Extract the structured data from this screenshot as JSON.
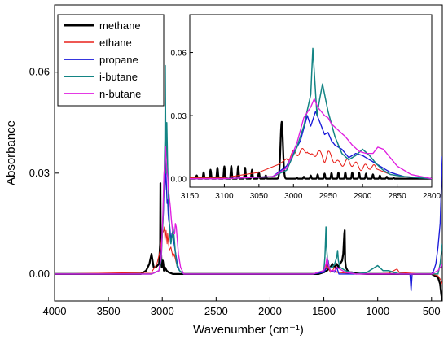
{
  "chart_data": {
    "type": "line",
    "title": "",
    "xlabel": "Wavenumber (cm⁻¹)",
    "ylabel": "Absorbance",
    "xlim": [
      4000,
      400
    ],
    "ylim": [
      -0.008,
      0.08
    ],
    "x_reversed": true,
    "x_ticks": [
      4000,
      3500,
      3000,
      2500,
      2000,
      1500,
      1000,
      500
    ],
    "y_ticks": [
      0.0,
      0.03,
      0.06
    ],
    "x_tick_labels": [
      "4000",
      "3500",
      "3000",
      "2500",
      "2000",
      "1500",
      "1000",
      "500"
    ],
    "y_tick_labels": [
      "0.00",
      "0.03",
      "0.06"
    ],
    "legend_position": "top-left",
    "series": [
      {
        "name": "methane",
        "color": "#000000",
        "stroke_width": 3,
        "x": [
          4000,
          3200,
          3150,
          3120,
          3100,
          3090,
          3080,
          3060,
          3030,
          3020,
          3017,
          3014,
          3005,
          2995,
          2990,
          2985,
          2975,
          2960,
          2940,
          2900,
          2800,
          2000,
          1550,
          1500,
          1470,
          1440,
          1420,
          1400,
          1380,
          1365,
          1350,
          1330,
          1320,
          1310,
          1306,
          1302,
          1295,
          1280,
          1260,
          1240,
          1200,
          1100,
          1000,
          800,
          500,
          440,
          420,
          410,
          400
        ],
        "y": [
          0,
          0,
          0.001,
          0.003,
          0.006,
          0.004,
          0.002,
          0.002,
          0.003,
          0.009,
          0.027,
          0.009,
          0.002,
          0.004,
          0.003,
          0.001,
          0.002,
          0.001,
          0.0005,
          0,
          0,
          0,
          0,
          0.0005,
          0.001,
          0.002,
          0.003,
          0.002,
          0.003,
          0.002,
          0.003,
          0.004,
          0.006,
          0.012,
          0.013,
          0.004,
          0.002,
          0.001,
          0.0005,
          0.0005,
          0.0002,
          0,
          0,
          0,
          0,
          -0.001,
          -0.003,
          -0.006,
          -0.008
        ]
      },
      {
        "name": "ethane",
        "color": "#e8201a",
        "stroke_width": 1.4,
        "x": [
          4000,
          3100,
          3050,
          3020,
          3000,
          2985,
          2980,
          2975,
          2965,
          2955,
          2950,
          2935,
          2920,
          2900,
          2890,
          2875,
          2860,
          2840,
          2800,
          2000,
          1600,
          1500,
          1480,
          1470,
          1460,
          1440,
          1420,
          1400,
          1380,
          1200,
          1000,
          900,
          850,
          820,
          800,
          600,
          500,
          440,
          410,
          400
        ],
        "y": [
          0,
          0.0005,
          0.003,
          0.007,
          0.012,
          0.013,
          0.014,
          0.01,
          0.013,
          0.009,
          0.012,
          0.007,
          0.008,
          0.005,
          0.006,
          0.004,
          0.002,
          0.001,
          0,
          0,
          0,
          0.0005,
          0.002,
          0.004,
          0.002,
          0.0005,
          0.001,
          0.002,
          0.0005,
          0,
          0,
          0.0002,
          0.001,
          0.0015,
          0.0005,
          0,
          0,
          -0.0005,
          -0.002,
          -0.003
        ]
      },
      {
        "name": "propane",
        "color": "#1a1ad9",
        "stroke_width": 1.8,
        "x": [
          4000,
          3100,
          3030,
          3010,
          2990,
          2980,
          2975,
          2968,
          2962,
          2955,
          2950,
          2945,
          2940,
          2930,
          2920,
          2910,
          2900,
          2890,
          2880,
          2870,
          2860,
          2840,
          2800,
          2000,
          1600,
          1500,
          1470,
          1460,
          1450,
          1440,
          1400,
          1380,
          1370,
          1360,
          1200,
          1000,
          900,
          800,
          700,
          690,
          680,
          600,
          500,
          480,
          460,
          440,
          420,
          410,
          400
        ],
        "y": [
          0,
          0,
          0.001,
          0.006,
          0.018,
          0.03,
          0.025,
          0.032,
          0.027,
          0.021,
          0.022,
          0.018,
          0.016,
          0.014,
          0.01,
          0.012,
          0.011,
          0.009,
          0.007,
          0.005,
          0.003,
          0.001,
          0,
          0,
          0,
          0.0005,
          0.002,
          0.004,
          0.002,
          0.001,
          0.0005,
          0.002,
          0.001,
          0,
          0,
          0,
          0,
          0,
          0,
          -0.005,
          0,
          0,
          0,
          0.001,
          0.003,
          0.008,
          0.015,
          0.025,
          0.035
        ]
      },
      {
        "name": "i-butane",
        "color": "#138484",
        "stroke_width": 2.0,
        "x": [
          4000,
          3100,
          3030,
          3010,
          2995,
          2985,
          2975,
          2972,
          2966,
          2962,
          2958,
          2950,
          2940,
          2930,
          2920,
          2910,
          2900,
          2890,
          2880,
          2870,
          2860,
          2840,
          2800,
          2000,
          1600,
          1500,
          1490,
          1480,
          1475,
          1465,
          1450,
          1420,
          1400,
          1380,
          1372,
          1365,
          1350,
          1300,
          1200,
          1100,
          1000,
          950,
          900,
          800,
          600,
          500,
          440,
          420,
          410,
          400
        ],
        "y": [
          0,
          0,
          0.001,
          0.004,
          0.015,
          0.025,
          0.04,
          0.062,
          0.03,
          0.038,
          0.045,
          0.032,
          0.02,
          0.012,
          0.009,
          0.011,
          0.014,
          0.011,
          0.007,
          0.004,
          0.002,
          0.001,
          0,
          0,
          0,
          0.001,
          0.005,
          0.014,
          0.008,
          0.004,
          0.002,
          0.002,
          0.003,
          0.005,
          0.007,
          0.004,
          0.002,
          0.001,
          0,
          0.0005,
          0.0025,
          0.001,
          0.001,
          0,
          0,
          0,
          0,
          0.003,
          0.006,
          0.009
        ]
      },
      {
        "name": "n-butane",
        "color": "#e01ee0",
        "stroke_width": 1.8,
        "x": [
          4000,
          3100,
          3030,
          3010,
          2995,
          2985,
          2975,
          2970,
          2965,
          2960,
          2955,
          2950,
          2945,
          2935,
          2925,
          2915,
          2905,
          2895,
          2885,
          2878,
          2870,
          2860,
          2850,
          2830,
          2800,
          2000,
          1600,
          1500,
          1480,
          1470,
          1460,
          1440,
          1400,
          1380,
          1300,
          1200,
          1000,
          900,
          800,
          600,
          500,
          440,
          420,
          410,
          400
        ],
        "y": [
          0,
          0,
          0.001,
          0.005,
          0.017,
          0.029,
          0.034,
          0.038,
          0.034,
          0.032,
          0.03,
          0.029,
          0.026,
          0.023,
          0.02,
          0.016,
          0.013,
          0.012,
          0.012,
          0.015,
          0.014,
          0.01,
          0.006,
          0.002,
          0,
          0,
          0,
          0.001,
          0.003,
          0.005,
          0.003,
          0.001,
          0.001,
          0.002,
          0.0005,
          0,
          0,
          0,
          0,
          0,
          0,
          0.001,
          0.002,
          0.002,
          0.003
        ]
      }
    ],
    "inset": {
      "xlim": [
        3150,
        2800
      ],
      "ylim": [
        -0.004,
        0.078
      ],
      "x_reversed": true,
      "x_ticks": [
        3150,
        3100,
        3050,
        3000,
        2950,
        2900,
        2850,
        2800
      ],
      "y_ticks": [
        0.0,
        0.03,
        0.06
      ],
      "x_tick_labels": [
        "3150",
        "3100",
        "3050",
        "3000",
        "2950",
        "2900",
        "2850",
        "2800"
      ],
      "y_tick_labels": [
        "0.00",
        "0.03",
        "0.06"
      ],
      "methane_rot_band": {
        "center": 3090,
        "half_width": 60,
        "spacing": 10,
        "amplitude": 0.006
      },
      "methane_rot_band_r": {
        "center": 2925,
        "half_width": 75,
        "spacing": 10,
        "amplitude": 0.003
      },
      "ethane_ripple": {
        "start": 3010,
        "end": 2880,
        "spacing": 13,
        "amplitude": 0.0015
      }
    }
  }
}
